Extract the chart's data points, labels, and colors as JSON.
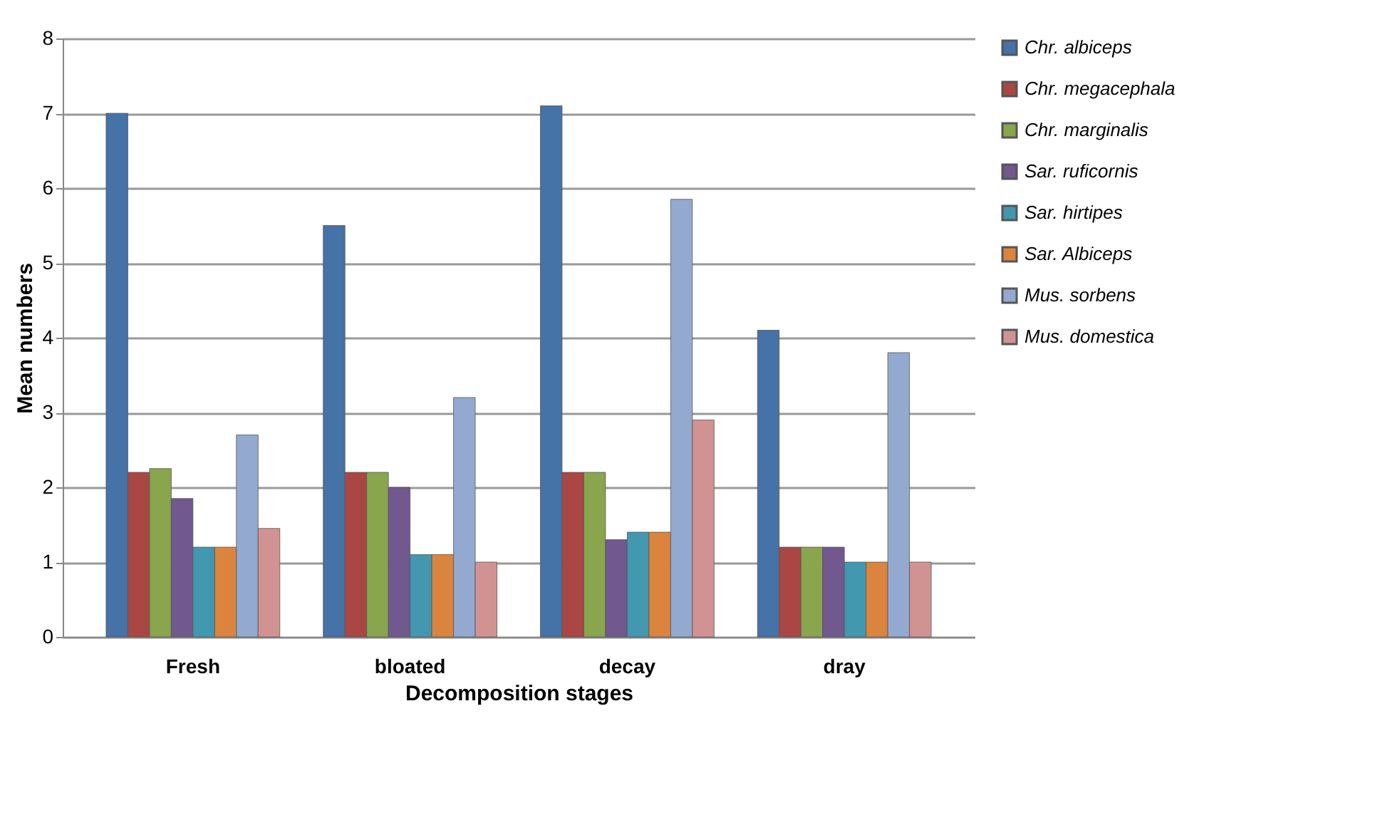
{
  "chart_data": {
    "type": "bar",
    "xlabel": "Decomposition stages",
    "ylabel": "Mean numbers",
    "categories": [
      "Fresh",
      "bloated",
      "decay",
      "dray"
    ],
    "series": [
      {
        "name": "Chr. albiceps",
        "color": "#4572a7",
        "values": [
          7.0,
          5.5,
          7.1,
          4.1
        ]
      },
      {
        "name": "Chr. megacephala",
        "color": "#aa4643",
        "values": [
          2.2,
          2.2,
          2.2,
          1.2
        ]
      },
      {
        "name": "Chr. marginalis",
        "color": "#89a54e",
        "values": [
          2.25,
          2.2,
          2.2,
          1.2
        ]
      },
      {
        "name": "Sar. ruficornis",
        "color": "#71588f",
        "values": [
          1.85,
          2.0,
          1.3,
          1.2
        ]
      },
      {
        "name": "Sar. hirtipes",
        "color": "#4198af",
        "values": [
          1.2,
          1.1,
          1.4,
          1.0
        ]
      },
      {
        "name": "Sar.  Albiceps",
        "color": "#db843d",
        "values": [
          1.2,
          1.1,
          1.4,
          1.0
        ]
      },
      {
        "name": "Mus. sorbens",
        "color": "#93a9cf",
        "values": [
          2.7,
          3.2,
          5.85,
          3.8
        ]
      },
      {
        "name": "Mus. domestica",
        "color": "#d19392",
        "values": [
          1.45,
          1.0,
          2.9,
          1.0
        ]
      }
    ],
    "ylim": [
      0,
      8
    ],
    "yticks": [
      0,
      1,
      2,
      3,
      4,
      5,
      6,
      7,
      8
    ],
    "grid": "y",
    "legend": "right"
  }
}
